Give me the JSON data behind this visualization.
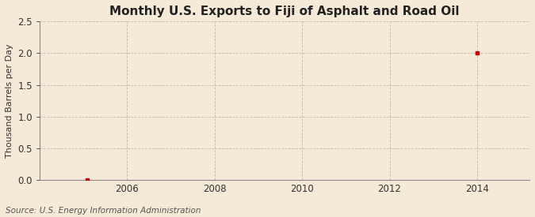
{
  "title": "Monthly U.S. Exports to Fiji of Asphalt and Road Oil",
  "ylabel": "Thousand Barrels per Day",
  "source": "Source: U.S. Energy Information Administration",
  "background_color": "#f5ead8",
  "plot_background_color": "#f5ead8",
  "data_points_x": [
    2005.08,
    2014.0
  ],
  "data_points_y": [
    0.0,
    2.0
  ],
  "point_color": "#cc0000",
  "point_marker": "s",
  "point_size": 3,
  "xlim": [
    2004.0,
    2015.2
  ],
  "ylim": [
    0.0,
    2.5
  ],
  "yticks": [
    0.0,
    0.5,
    1.0,
    1.5,
    2.0,
    2.5
  ],
  "xticks": [
    2006,
    2008,
    2010,
    2012,
    2014
  ],
  "grid_color": "#bbbbaa",
  "grid_linestyle": "--",
  "grid_linewidth": 0.6,
  "title_fontsize": 11,
  "axis_fontsize": 8,
  "source_fontsize": 7.5,
  "tick_fontsize": 8.5
}
